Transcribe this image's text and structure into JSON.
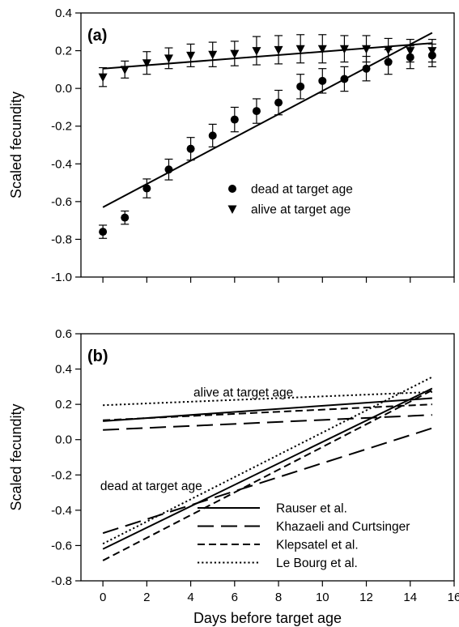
{
  "chart_data": [
    {
      "type": "scatter",
      "panel_label": "(a)",
      "ylabel": "Scaled fecundity",
      "xlabel": "",
      "xlim": [
        -1,
        16
      ],
      "ylim": [
        -1.0,
        0.4
      ],
      "yticks": [
        -1.0,
        -0.8,
        -0.6,
        -0.4,
        -0.2,
        0.0,
        0.2,
        0.4
      ],
      "ytick_labels": [
        "-1.0",
        "-0.8",
        "-0.6",
        "-0.4",
        "-0.2",
        "0.0",
        "0.2",
        "0.4"
      ],
      "xticks": [
        0,
        2,
        4,
        6,
        8,
        10,
        12,
        14,
        16
      ],
      "xtick_labels": [],
      "legend_position": "center-right",
      "series": [
        {
          "name": "dead at target age",
          "marker": "circle",
          "x": [
            0,
            1,
            2,
            3,
            4,
            5,
            6,
            7,
            8,
            9,
            10,
            11,
            12,
            13,
            14,
            15
          ],
          "y": [
            -0.76,
            -0.685,
            -0.53,
            -0.43,
            -0.32,
            -0.25,
            -0.165,
            -0.12,
            -0.075,
            0.01,
            0.04,
            0.05,
            0.105,
            0.14,
            0.165,
            0.175
          ],
          "error": [
            0.035,
            0.035,
            0.05,
            0.055,
            0.06,
            0.06,
            0.065,
            0.065,
            0.065,
            0.065,
            0.065,
            0.065,
            0.065,
            0.065,
            0.06,
            0.06
          ],
          "fit": {
            "x": [
              0,
              15
            ],
            "y": [
              -0.63,
              0.295
            ]
          }
        },
        {
          "name": "alive at target age",
          "marker": "triangle-down",
          "x": [
            0,
            1,
            2,
            3,
            4,
            5,
            6,
            7,
            8,
            9,
            10,
            11,
            12,
            13,
            14,
            15
          ],
          "y": [
            0.06,
            0.1,
            0.135,
            0.16,
            0.175,
            0.18,
            0.185,
            0.2,
            0.205,
            0.21,
            0.21,
            0.21,
            0.21,
            0.205,
            0.2,
            0.2
          ],
          "error": [
            0.05,
            0.045,
            0.06,
            0.055,
            0.06,
            0.065,
            0.065,
            0.075,
            0.075,
            0.075,
            0.075,
            0.07,
            0.07,
            0.06,
            0.06,
            0.06
          ],
          "fit": {
            "x": [
              0,
              15
            ],
            "y": [
              0.105,
              0.24
            ]
          }
        }
      ]
    },
    {
      "type": "line",
      "panel_label": "(b)",
      "ylabel": "Scaled fecundity",
      "xlabel": "Days before target age",
      "xlim": [
        -1,
        16
      ],
      "ylim": [
        -0.8,
        0.6
      ],
      "yticks": [
        -0.8,
        -0.6,
        -0.4,
        -0.2,
        0.0,
        0.2,
        0.4,
        0.6
      ],
      "ytick_labels": [
        "-0.8",
        "-0.6",
        "-0.4",
        "-0.2",
        "0.0",
        "0.2",
        "0.4",
        "0.6"
      ],
      "xticks": [
        0,
        2,
        4,
        6,
        8,
        10,
        12,
        14,
        16
      ],
      "xtick_labels": [
        "0",
        "2",
        "4",
        "6",
        "8",
        "10",
        "12",
        "14",
        "16"
      ],
      "legend_position": "bottom-right",
      "annotations": [
        {
          "text": "alive at target age",
          "x": 6.4,
          "y": 0.245
        },
        {
          "text": "dead at target age",
          "x": 2.2,
          "y": -0.285
        }
      ],
      "series": [
        {
          "name": "Rauser et al.",
          "style": "solid",
          "lines": [
            {
              "x": [
                0,
                15
              ],
              "y": [
                0.105,
                0.235
              ]
            },
            {
              "x": [
                0,
                15
              ],
              "y": [
                -0.62,
                0.29
              ]
            }
          ]
        },
        {
          "name": "Khazaeli and Curtsinger",
          "style": "long-dash",
          "lines": [
            {
              "x": [
                0,
                15
              ],
              "y": [
                0.055,
                0.14
              ]
            },
            {
              "x": [
                0,
                15
              ],
              "y": [
                -0.53,
                0.065
              ]
            }
          ]
        },
        {
          "name": "Klepsatel et al.",
          "style": "short-dash",
          "lines": [
            {
              "x": [
                0,
                15
              ],
              "y": [
                0.11,
                0.2
              ]
            },
            {
              "x": [
                0,
                15
              ],
              "y": [
                -0.685,
                0.28
              ]
            }
          ]
        },
        {
          "name": "Le Bourg et al.",
          "style": "dotted",
          "lines": [
            {
              "x": [
                0,
                15
              ],
              "y": [
                0.195,
                0.27
              ]
            },
            {
              "x": [
                0,
                15
              ],
              "y": [
                -0.59,
                0.355
              ]
            }
          ]
        }
      ]
    }
  ]
}
